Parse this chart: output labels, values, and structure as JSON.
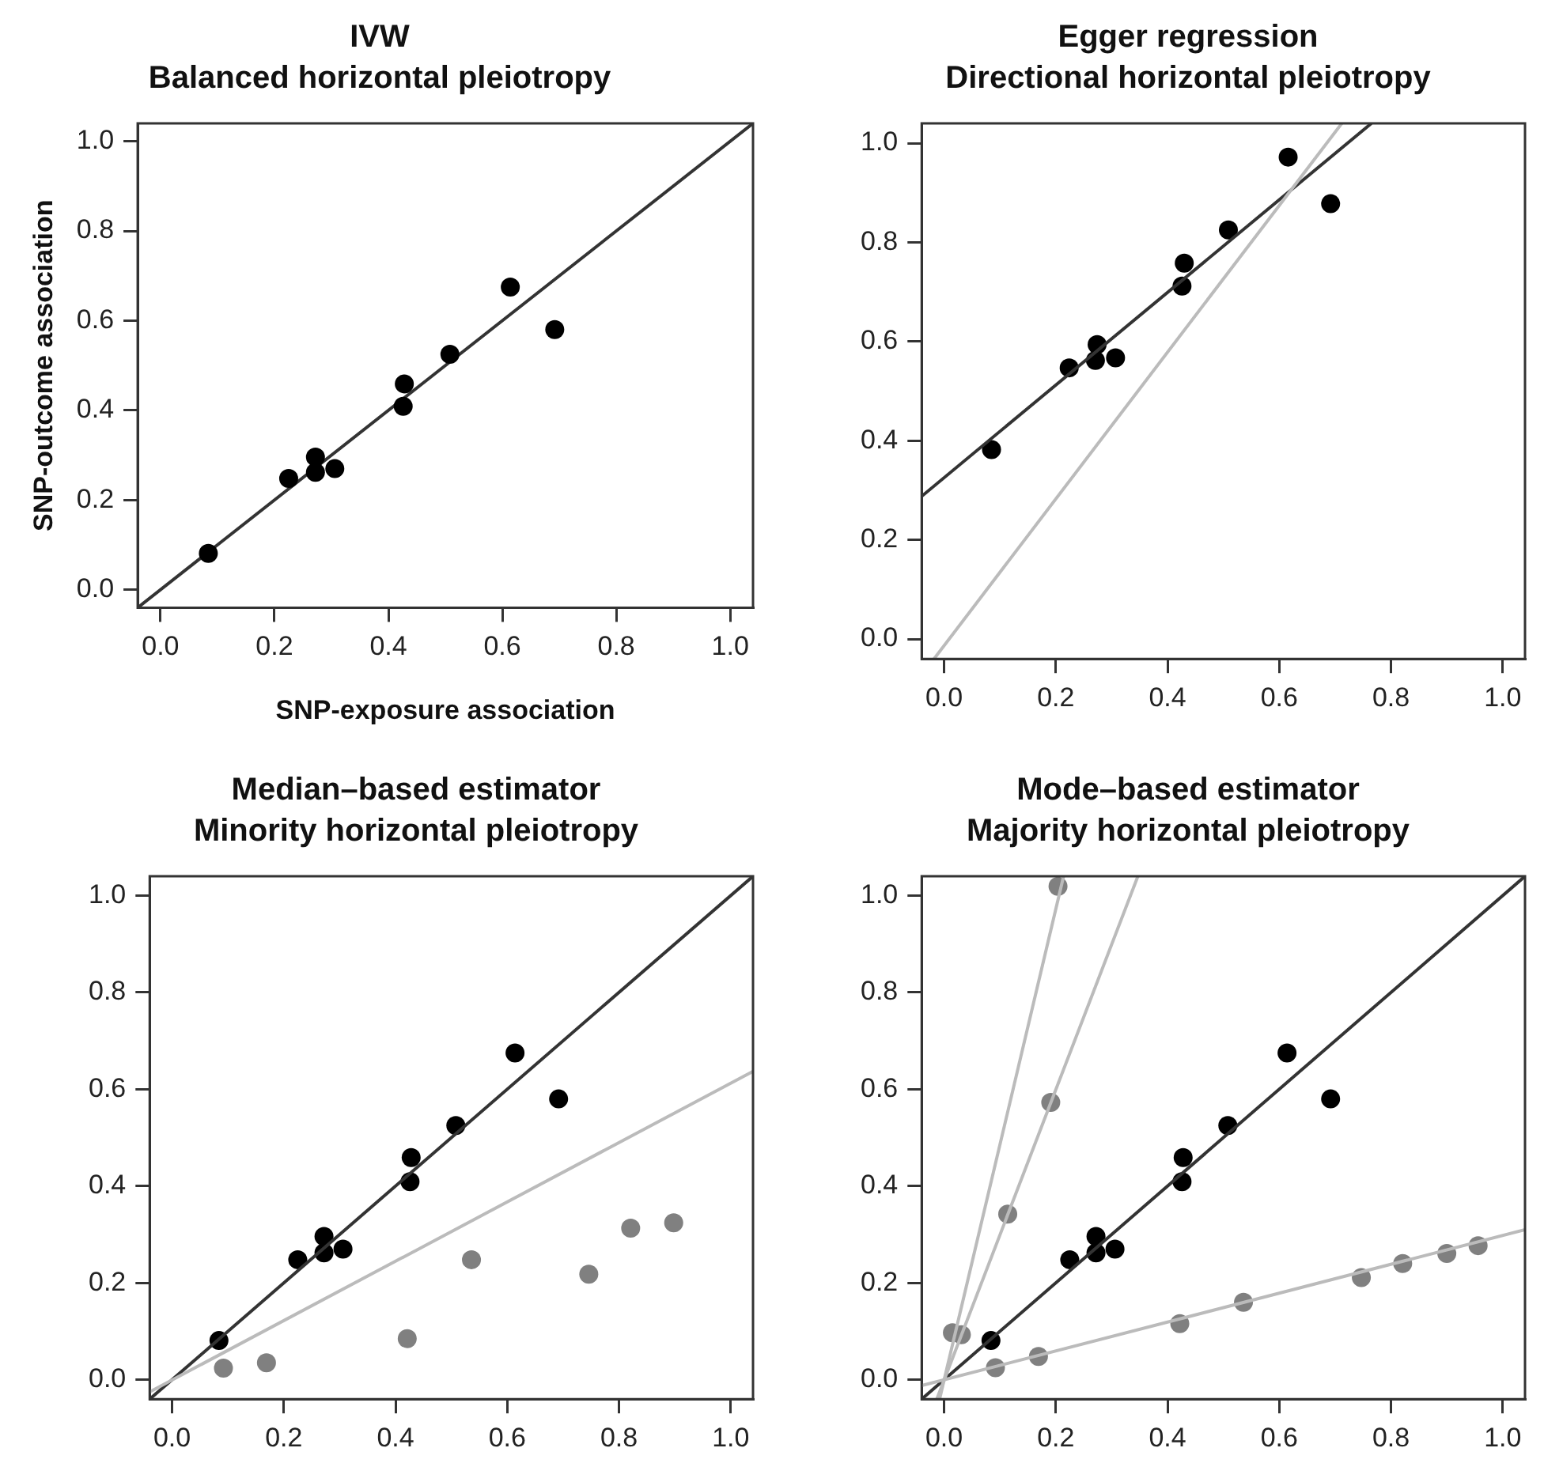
{
  "chart_data": [
    {
      "type": "scatter",
      "title": "IVW",
      "subtitle": "Balanced horizontal pleiotropy",
      "xlabel": "SNP-exposure association",
      "ylabel": "SNP-outcome association",
      "xlim": [
        -0.04,
        1.04
      ],
      "ylim": [
        -0.04,
        1.04
      ],
      "xticks": [
        "0.0",
        0.2,
        0.4,
        0.6,
        0.8,
        "1.0"
      ],
      "yticks": [
        "0.0",
        0.2,
        0.4,
        0.6,
        0.8,
        "1.0"
      ],
      "grid": false,
      "legend": false,
      "marker": "circle",
      "series": [
        {
          "type": "scatter",
          "color": "#000000",
          "x": [
            0.084,
            0.225,
            0.272,
            0.272,
            0.306,
            0.426,
            0.428,
            0.508,
            0.614,
            0.692
          ],
          "values": [
            0.081,
            0.248,
            0.296,
            0.262,
            0.27,
            0.409,
            0.459,
            0.525,
            0.675,
            0.58
          ]
        },
        {
          "type": "line",
          "color": "#333333",
          "marker": "none",
          "x": [
            -0.04,
            1.04
          ],
          "values": [
            -0.04,
            1.04
          ]
        }
      ]
    },
    {
      "type": "scatter",
      "title": "Egger regression",
      "subtitle": "Directional horizontal pleiotropy",
      "xlim": [
        -0.04,
        1.04
      ],
      "ylim": [
        -0.04,
        1.04
      ],
      "xticks": [
        "0.0",
        0.2,
        0.4,
        0.6,
        0.8,
        "1.0"
      ],
      "yticks": [
        "0.0",
        0.2,
        0.4,
        0.6,
        0.8,
        "1.0"
      ],
      "grid": false,
      "legend": false,
      "marker": "circle",
      "series": [
        {
          "type": "line",
          "color": "#bbbbbb",
          "marker": "none",
          "x": [
            -0.018,
            0.712
          ],
          "values": [
            -0.04,
            1.04
          ]
        },
        {
          "type": "line",
          "color": "#333333",
          "marker": "none",
          "x": [
            -0.04,
            0.765
          ],
          "values": [
            0.288,
            1.04
          ]
        },
        {
          "type": "scatter",
          "color": "#000000",
          "x": [
            0.085,
            0.224,
            0.274,
            0.271,
            0.307,
            0.426,
            0.43,
            0.509,
            0.616,
            0.692
          ],
          "values": [
            0.382,
            0.547,
            0.594,
            0.562,
            0.567,
            0.712,
            0.758,
            0.825,
            0.972,
            0.878
          ]
        }
      ]
    },
    {
      "type": "scatter",
      "title": "Median–based estimator",
      "subtitle": "Minority horizontal pleiotropy",
      "xlim": [
        -0.04,
        1.04
      ],
      "ylim": [
        -0.04,
        1.04
      ],
      "xticks": [
        "0.0",
        0.2,
        0.4,
        0.6,
        0.8,
        "1.0"
      ],
      "yticks": [
        "0.0",
        0.2,
        0.4,
        0.6,
        0.8,
        "1.0"
      ],
      "grid": false,
      "legend": false,
      "marker": "circle",
      "series": [
        {
          "type": "line",
          "color": "#bbbbbb",
          "marker": "none",
          "x": [
            -0.04,
            1.04
          ],
          "values": [
            -0.025,
            0.637
          ]
        },
        {
          "type": "line",
          "color": "#333333",
          "marker": "none",
          "x": [
            -0.04,
            1.04
          ],
          "values": [
            -0.04,
            1.04
          ]
        },
        {
          "type": "scatter",
          "color": "#808080",
          "x": [
            0.092,
            0.169,
            0.421,
            0.536,
            0.746,
            0.821,
            0.898
          ],
          "values": [
            0.024,
            0.035,
            0.085,
            0.248,
            0.218,
            0.313,
            0.324
          ]
        },
        {
          "type": "scatter",
          "color": "#000000",
          "x": [
            0.084,
            0.225,
            0.272,
            0.272,
            0.306,
            0.426,
            0.428,
            0.508,
            0.614,
            0.692
          ],
          "values": [
            0.081,
            0.248,
            0.296,
            0.262,
            0.27,
            0.409,
            0.459,
            0.525,
            0.675,
            0.58
          ]
        }
      ]
    },
    {
      "type": "scatter",
      "title": "Mode–based estimator",
      "subtitle": "Majority horizontal pleiotropy",
      "xlim": [
        -0.04,
        1.04
      ],
      "ylim": [
        -0.04,
        1.04
      ],
      "xticks": [
        "0.0",
        0.2,
        0.4,
        0.6,
        0.8,
        "1.0"
      ],
      "yticks": [
        "0.0",
        0.2,
        0.4,
        0.6,
        0.8,
        "1.0"
      ],
      "grid": false,
      "legend": false,
      "marker": "circle",
      "series": [
        {
          "type": "line",
          "color": "#bbbbbb",
          "marker": "none",
          "x": [
            -0.008,
            0.214
          ],
          "values": [
            -0.04,
            1.04
          ]
        },
        {
          "type": "line",
          "color": "#bbbbbb",
          "marker": "none",
          "x": [
            -0.013,
            0.347
          ],
          "values": [
            -0.04,
            1.04
          ]
        },
        {
          "type": "line",
          "color": "#bbbbbb",
          "marker": "none",
          "x": [
            -0.04,
            1.04
          ],
          "values": [
            -0.012,
            0.31
          ]
        },
        {
          "type": "line",
          "color": "#333333",
          "marker": "none",
          "x": [
            -0.04,
            1.04
          ],
          "values": [
            -0.04,
            1.04
          ]
        },
        {
          "type": "scatter",
          "color": "#808080",
          "x": [
            0.015,
            0.031,
            0.114,
            0.191,
            0.204,
            0.092,
            0.169,
            0.422,
            0.536,
            0.747,
            0.821,
            0.9,
            0.956
          ],
          "values": [
            0.097,
            0.093,
            0.342,
            0.573,
            1.019,
            0.025,
            0.048,
            0.116,
            0.16,
            0.211,
            0.24,
            0.261,
            0.277
          ]
        },
        {
          "type": "scatter",
          "color": "#000000",
          "x": [
            0.084,
            0.225,
            0.272,
            0.272,
            0.306,
            0.426,
            0.428,
            0.508,
            0.614,
            0.692
          ],
          "values": [
            0.081,
            0.248,
            0.296,
            0.262,
            0.27,
            0.409,
            0.459,
            0.525,
            0.675,
            0.58
          ]
        }
      ]
    }
  ]
}
